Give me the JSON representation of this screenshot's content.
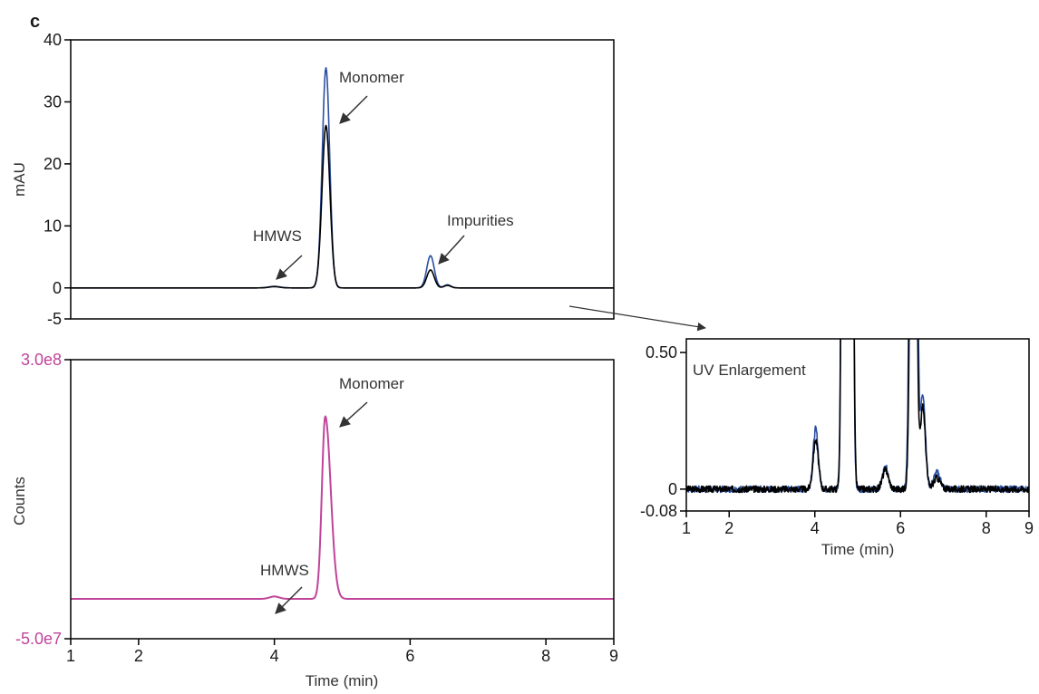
{
  "panel_label": "c",
  "colors": {
    "blue": "#2b4fa0",
    "black": "#000000",
    "magenta": "#c0449a",
    "axis": "#000000",
    "arrow": "#333333"
  },
  "chart_data": [
    {
      "type": "line",
      "xlabel": "",
      "ylabel": "mAU",
      "xlim": [
        1,
        9
      ],
      "ylim": [
        -5,
        40
      ],
      "yticks": [
        "40",
        "30",
        "20",
        "10",
        "0",
        "-5"
      ],
      "ytick_values": [
        40,
        30,
        20,
        10,
        0,
        -5
      ],
      "xticks": [],
      "series": [
        {
          "color": "#2b4fa0",
          "peaks": [
            {
              "x": 4.0,
              "height": 0.25,
              "width": 0.08
            },
            {
              "x": 4.76,
              "height": 35.5,
              "width": 0.055
            },
            {
              "x": 6.3,
              "height": 5.2,
              "width": 0.055
            },
            {
              "x": 6.55,
              "height": 0.5,
              "width": 0.05
            }
          ]
        },
        {
          "color": "#000000",
          "peaks": [
            {
              "x": 4.0,
              "height": 0.2,
              "width": 0.08
            },
            {
              "x": 4.76,
              "height": 26.2,
              "width": 0.058
            },
            {
              "x": 6.3,
              "height": 2.9,
              "width": 0.055
            },
            {
              "x": 6.55,
              "height": 0.4,
              "width": 0.05
            }
          ]
        }
      ],
      "annotations": [
        "Monomer",
        "Impurities",
        "HMWS"
      ]
    },
    {
      "type": "line",
      "xlabel": "Time (min)",
      "ylabel": "Counts",
      "xlim": [
        1,
        9
      ],
      "ylim": [
        -50000000,
        300000000
      ],
      "yticks": [
        "3.0e8",
        "-5.0e7"
      ],
      "ytick_values": [
        300000000,
        -50000000
      ],
      "xticks": [
        "1",
        "2",
        "4",
        "6",
        "8",
        "9"
      ],
      "xtick_values": [
        1,
        2,
        4,
        6,
        8,
        9
      ],
      "series": [
        {
          "color": "#c0449a",
          "baseline": 0,
          "peaks": [
            {
              "x": 4.0,
              "height": 3000000,
              "width": 0.07
            },
            {
              "x": 4.75,
              "height": 229000000,
              "width": 0.05,
              "tail": 0.08
            }
          ]
        }
      ],
      "annotations": [
        "Monomer",
        "HMWS"
      ]
    },
    {
      "type": "line",
      "title": "UV Enlargement",
      "xlabel": "Time (min)",
      "ylabel": "",
      "xlim": [
        1,
        9
      ],
      "ylim": [
        -0.08,
        0.55
      ],
      "yticks": [
        "0.50",
        "0",
        "-0.08"
      ],
      "ytick_values": [
        0.5,
        0,
        -0.08
      ],
      "xticks": [
        "1",
        "2",
        "4",
        "6",
        "8",
        "9"
      ],
      "xtick_values": [
        1,
        2,
        4,
        6,
        8,
        9
      ],
      "series": [
        {
          "color": "#2b4fa0",
          "noise": 0.012,
          "seed": 7,
          "peaks": [
            {
              "x": 4.02,
              "height": 0.22,
              "width": 0.06
            },
            {
              "x": 4.76,
              "height": 35.5,
              "width": 0.055
            },
            {
              "x": 5.65,
              "height": 0.08,
              "width": 0.07
            },
            {
              "x": 6.3,
              "height": 5.2,
              "width": 0.055
            },
            {
              "x": 6.52,
              "height": 0.35,
              "width": 0.06
            },
            {
              "x": 6.85,
              "height": 0.06,
              "width": 0.08
            }
          ]
        },
        {
          "color": "#000000",
          "noise": 0.012,
          "seed": 3,
          "peaks": [
            {
              "x": 4.02,
              "height": 0.18,
              "width": 0.06
            },
            {
              "x": 4.76,
              "height": 26.2,
              "width": 0.058
            },
            {
              "x": 5.65,
              "height": 0.07,
              "width": 0.07
            },
            {
              "x": 6.3,
              "height": 2.9,
              "width": 0.055
            },
            {
              "x": 6.52,
              "height": 0.3,
              "width": 0.06
            },
            {
              "x": 6.85,
              "height": 0.04,
              "width": 0.08
            }
          ]
        }
      ]
    }
  ]
}
